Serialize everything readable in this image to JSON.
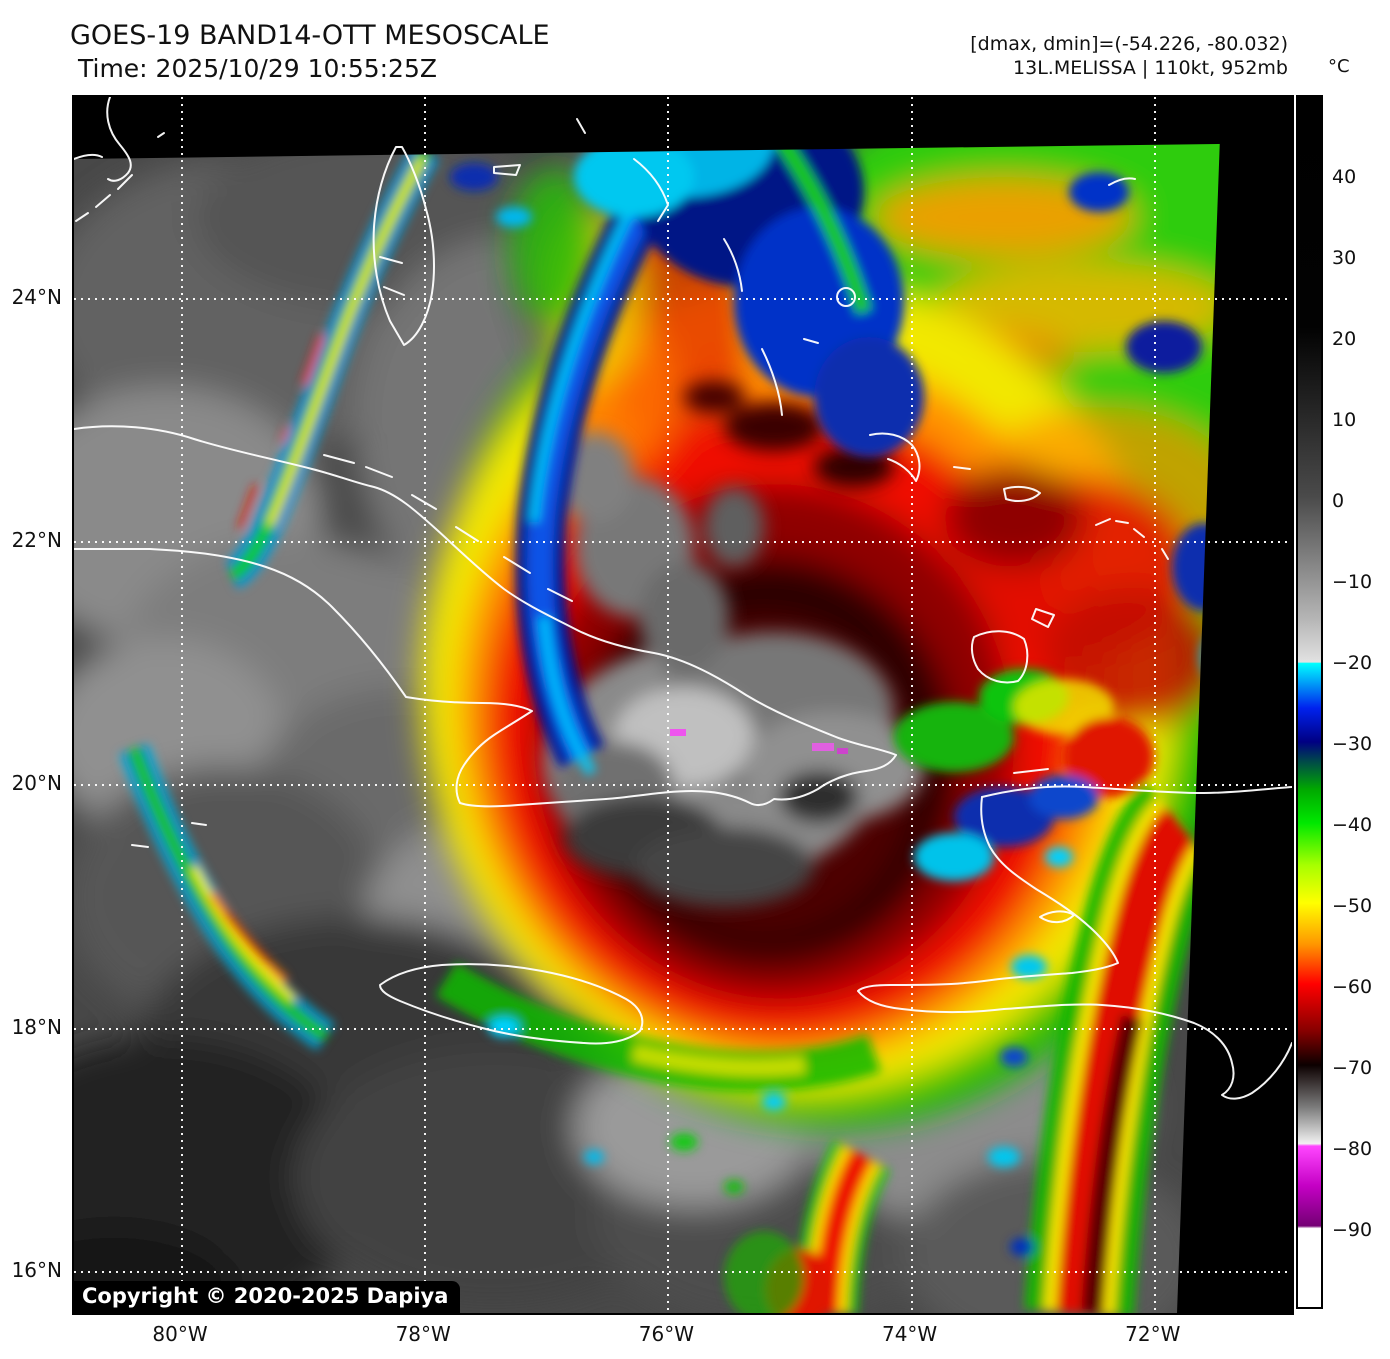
{
  "header": {
    "title": "GOES-19 BAND14-OTT MESOSCALE",
    "time_line": "Time: 2025/10/29 10:55:25Z",
    "dmax_dmin": "[dmax, dmin]=(-54.226, -80.032)",
    "storm_info": "13L.MELISSA | 110kt, 952mb"
  },
  "map": {
    "copyright": "Copyright © 2020-2025 Dapiya",
    "x_axis": {
      "ticks": [
        {
          "deg": 80,
          "label": "80°W"
        },
        {
          "deg": 78,
          "label": "78°W"
        },
        {
          "deg": 76,
          "label": "76°W"
        },
        {
          "deg": 74,
          "label": "74°W"
        },
        {
          "deg": 72,
          "label": "72°W"
        }
      ]
    },
    "y_axis": {
      "ticks": [
        {
          "deg": 24,
          "label": "24°N"
        },
        {
          "deg": 22,
          "label": "22°N"
        },
        {
          "deg": 20,
          "label": "20°N"
        },
        {
          "deg": 18,
          "label": "18°N"
        },
        {
          "deg": 16,
          "label": "16°N"
        }
      ]
    }
  },
  "colorbar": {
    "unit": "°C",
    "ticks": [
      {
        "value": 40,
        "label": "40"
      },
      {
        "value": 30,
        "label": "30"
      },
      {
        "value": 20,
        "label": "20"
      },
      {
        "value": 10,
        "label": "10"
      },
      {
        "value": 0,
        "label": "0"
      },
      {
        "value": -10,
        "label": "−10"
      },
      {
        "value": -20,
        "label": "−20"
      },
      {
        "value": -30,
        "label": "−30"
      },
      {
        "value": -40,
        "label": "−40"
      },
      {
        "value": -50,
        "label": "−50"
      },
      {
        "value": -60,
        "label": "−60"
      },
      {
        "value": -70,
        "label": "−70"
      },
      {
        "value": -80,
        "label": "−80"
      },
      {
        "value": -90,
        "label": "−90"
      }
    ],
    "scale_top_c": 50,
    "scale_bottom_c": -100,
    "gradient_stops": [
      [
        0.0,
        "#000000"
      ],
      [
        0.19,
        "#020202"
      ],
      [
        0.33,
        "#4a4a4a"
      ],
      [
        0.43,
        "#b4b4b4"
      ],
      [
        0.467,
        "#e2e2e2"
      ],
      [
        0.468,
        "#00ffff"
      ],
      [
        0.505,
        "#0022ee"
      ],
      [
        0.533,
        "#000082"
      ],
      [
        0.55,
        "#004d46"
      ],
      [
        0.572,
        "#00a800"
      ],
      [
        0.6,
        "#00e800"
      ],
      [
        0.635,
        "#a8ff00"
      ],
      [
        0.666,
        "#ffff00"
      ],
      [
        0.7,
        "#ff9700"
      ],
      [
        0.733,
        "#ff0000"
      ],
      [
        0.772,
        "#860000"
      ],
      [
        0.8,
        "#0c0000"
      ],
      [
        0.835,
        "#7c7c7c"
      ],
      [
        0.865,
        "#f2f2f2"
      ],
      [
        0.867,
        "#ff46ff"
      ],
      [
        0.9,
        "#c400c4"
      ],
      [
        0.933,
        "#740074"
      ],
      [
        0.935,
        "#ffffff"
      ],
      [
        1.0,
        "#ffffff"
      ]
    ]
  }
}
